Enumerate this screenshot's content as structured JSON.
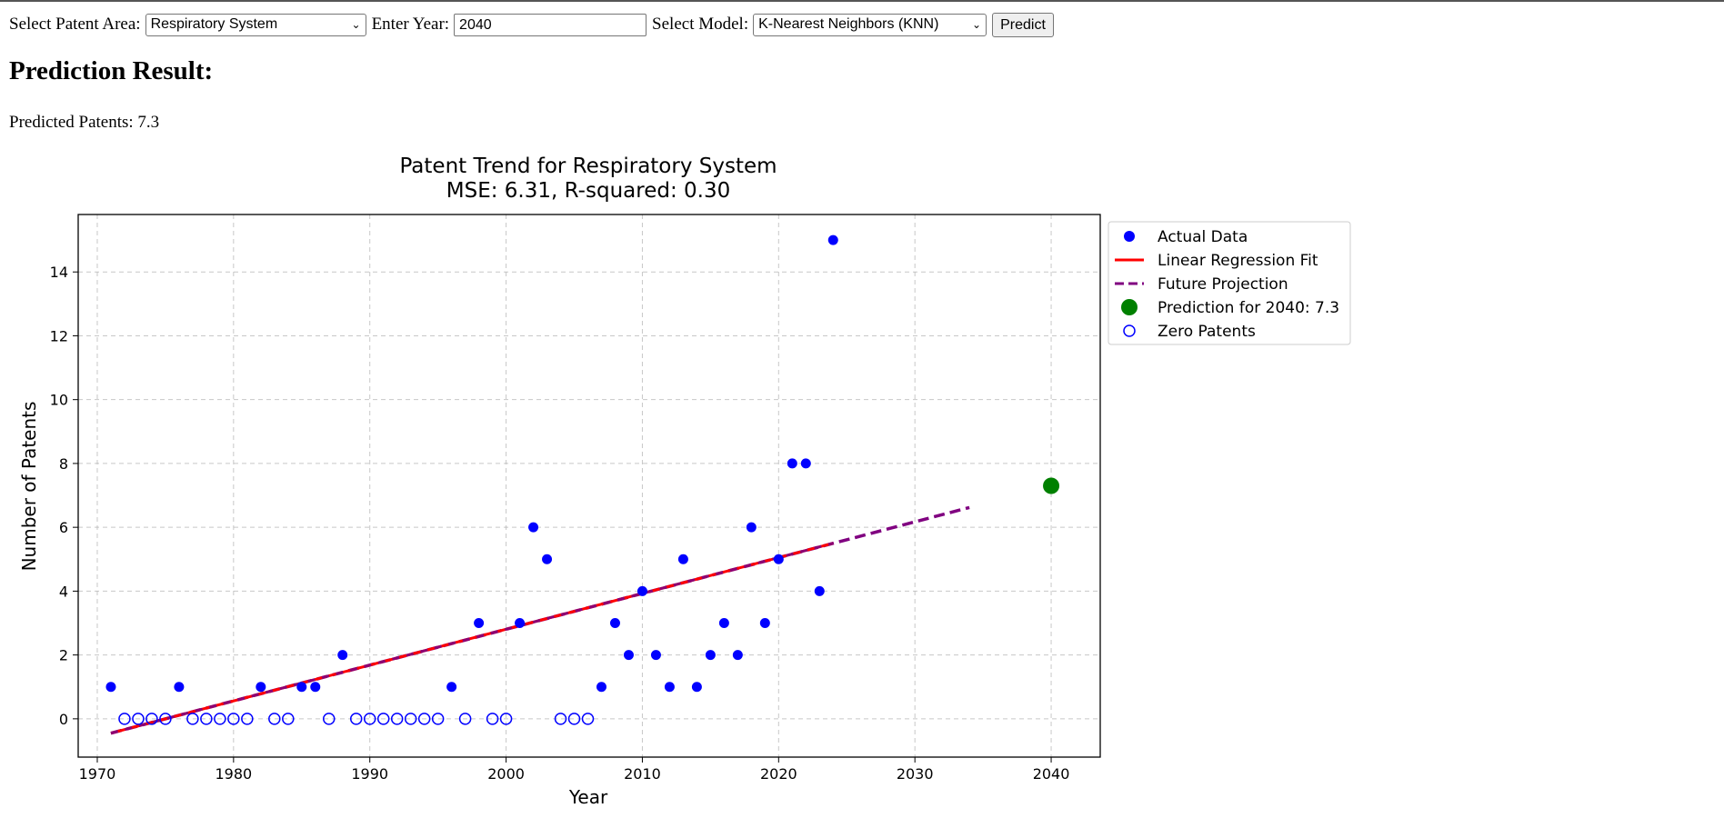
{
  "form": {
    "area_label": "Select Patent Area:",
    "area_value": "Respiratory System",
    "year_label": "Enter Year:",
    "year_value": "2040",
    "model_label": "Select Model:",
    "model_value": "K-Nearest Neighbors (KNN)",
    "predict_button": "Predict"
  },
  "result": {
    "heading": "Prediction Result:",
    "text": "Predicted Patents: 7.3"
  },
  "colors": {
    "actual": "#0000ff",
    "fit": "#ff0000",
    "projection": "#800080",
    "prediction": "#008000"
  },
  "chart_data": {
    "type": "scatter",
    "title": "Patent Trend for Respiratory System",
    "subtitle": "MSE: 6.31, R-squared: 0.30",
    "xlabel": "Year",
    "ylabel": "Number of Patents",
    "xlim": [
      1968.6,
      2043.6
    ],
    "ylim": [
      -1.2,
      15.8
    ],
    "xticks": [
      1970,
      1980,
      1990,
      2000,
      2010,
      2020,
      2030,
      2040
    ],
    "yticks": [
      0,
      2,
      4,
      6,
      8,
      10,
      12,
      14
    ],
    "grid": true,
    "legend_position": "outside right, top",
    "legend": [
      "Actual Data",
      "Linear Regression Fit",
      "Future Projection",
      "Prediction for 2040: 7.3",
      "Zero Patents"
    ],
    "series": [
      {
        "name": "Actual Data",
        "x": [
          1971,
          1976,
          1982,
          1985,
          1986,
          1988,
          1996,
          1998,
          2001,
          2002,
          2003,
          2007,
          2008,
          2009,
          2010,
          2011,
          2012,
          2013,
          2014,
          2015,
          2016,
          2017,
          2018,
          2019,
          2020,
          2021,
          2022,
          2023,
          2024
        ],
        "y": [
          1,
          1,
          1,
          1,
          1,
          2,
          1,
          3,
          3,
          6,
          5,
          1,
          3,
          2,
          4,
          2,
          1,
          5,
          1,
          2,
          3,
          2,
          6,
          3,
          5,
          8,
          8,
          4,
          15
        ]
      },
      {
        "name": "Zero Patents",
        "x": [
          1972,
          1973,
          1974,
          1975,
          1977,
          1978,
          1979,
          1980,
          1981,
          1983,
          1984,
          1987,
          1989,
          1990,
          1991,
          1992,
          1993,
          1994,
          1995,
          1997,
          1999,
          2000,
          2004,
          2005,
          2006
        ],
        "y": [
          0,
          0,
          0,
          0,
          0,
          0,
          0,
          0,
          0,
          0,
          0,
          0,
          0,
          0,
          0,
          0,
          0,
          0,
          0,
          0,
          0,
          0,
          0,
          0,
          0
        ]
      },
      {
        "name": "Linear Regression Fit",
        "x": [
          1971,
          2024
        ],
        "y": [
          -0.45,
          5.5
        ]
      },
      {
        "name": "Future Projection",
        "x": [
          1971,
          2034
        ],
        "y": [
          -0.45,
          6.62
        ]
      },
      {
        "name": "Prediction for 2040: 7.3",
        "x": [
          2040
        ],
        "y": [
          7.3
        ]
      }
    ]
  }
}
